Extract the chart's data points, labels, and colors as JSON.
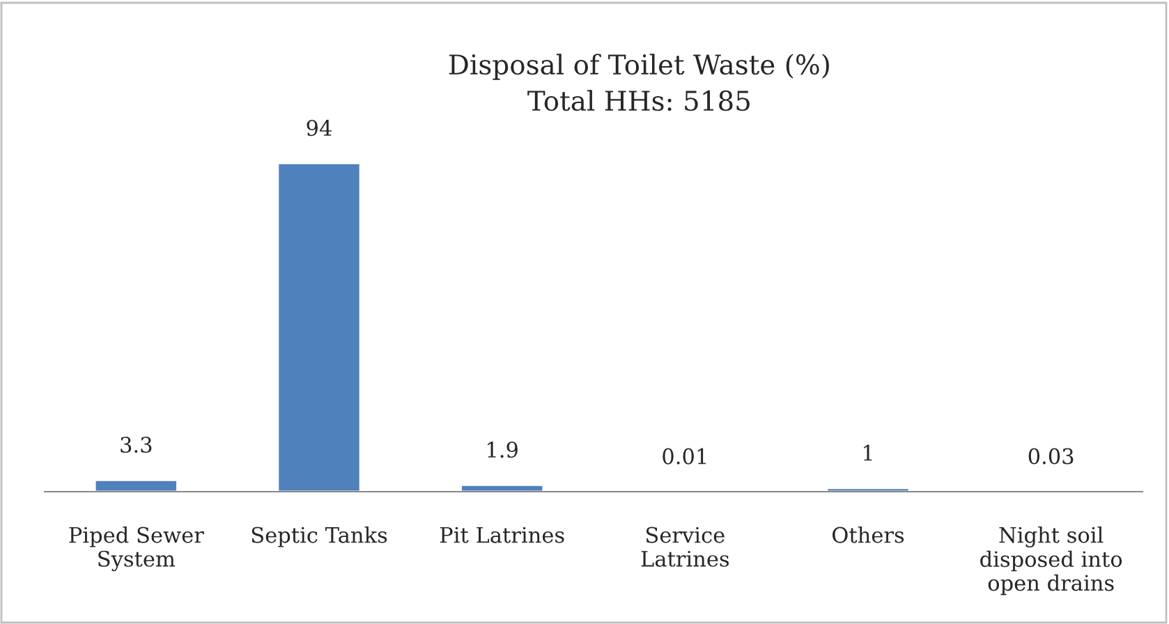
{
  "chart_data": {
    "type": "bar",
    "title": "Disposal of Toilet Waste (%)",
    "subtitle": "Total HHs: 5185",
    "categories": [
      "Piped Sewer\nSystem",
      "Septic Tanks",
      "Pit Latrines",
      "Service\nLatrines",
      "Others",
      "Night soil\ndisposed into\nopen drains"
    ],
    "values": [
      3.3,
      94,
      1.9,
      0.01,
      1,
      0.03
    ],
    "value_labels": [
      "3.3",
      "94",
      "1.9",
      "0.01",
      "1",
      "0.03"
    ],
    "color": "#4f81bd",
    "grid": false,
    "legend": false
  }
}
